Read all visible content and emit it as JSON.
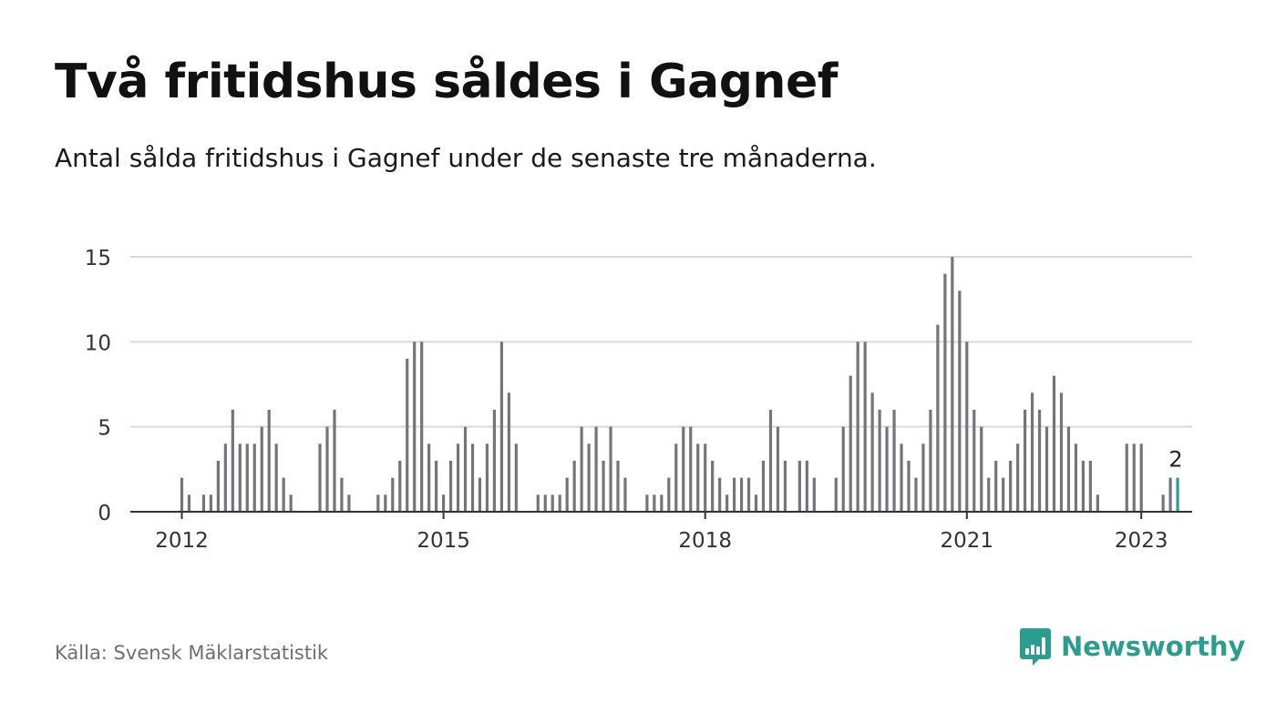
{
  "header": {
    "title": "Två fritidshus såldes i Gagnef",
    "subtitle": "Antal sålda fritidshus i Gagnef under de senaste tre månaderna."
  },
  "footer": {
    "source": "Källa: Svensk Mäklarstatistik",
    "brand": "Newsworthy"
  },
  "colors": {
    "bar": "#75747a",
    "highlight": "#2a9d8f",
    "grid": "#d9d9d9",
    "axis": "#333333",
    "brand": "#2a9d8f"
  },
  "chart_data": {
    "type": "bar",
    "title": "",
    "xlabel": "",
    "ylabel": "",
    "ylim": [
      0,
      15
    ],
    "yticks": [
      0,
      5,
      10,
      15
    ],
    "xticks": [
      "2012",
      "2015",
      "2018",
      "2021",
      "2023"
    ],
    "x_start": "2012-01",
    "grid": true,
    "highlight_label": "2",
    "values": [
      2,
      1,
      0,
      1,
      1,
      3,
      4,
      6,
      4,
      4,
      4,
      5,
      6,
      4,
      2,
      1,
      null,
      null,
      null,
      4,
      5,
      6,
      2,
      1,
      null,
      null,
      null,
      1,
      1,
      2,
      3,
      9,
      10,
      10,
      4,
      3,
      1,
      3,
      4,
      5,
      4,
      2,
      4,
      6,
      10,
      7,
      4,
      null,
      null,
      1,
      1,
      1,
      1,
      2,
      3,
      5,
      4,
      5,
      3,
      5,
      3,
      2,
      null,
      null,
      1,
      1,
      1,
      2,
      4,
      5,
      5,
      4,
      4,
      3,
      2,
      1,
      2,
      2,
      2,
      1,
      3,
      6,
      5,
      3,
      null,
      3,
      3,
      2,
      null,
      null,
      2,
      5,
      8,
      10,
      10,
      7,
      6,
      5,
      6,
      4,
      3,
      2,
      4,
      6,
      11,
      14,
      15,
      13,
      10,
      6,
      5,
      2,
      3,
      2,
      3,
      4,
      6,
      7,
      6,
      5,
      8,
      7,
      5,
      4,
      3,
      3,
      1,
      null,
      null,
      null,
      4,
      4,
      4,
      null,
      null,
      1,
      2,
      2
    ]
  }
}
